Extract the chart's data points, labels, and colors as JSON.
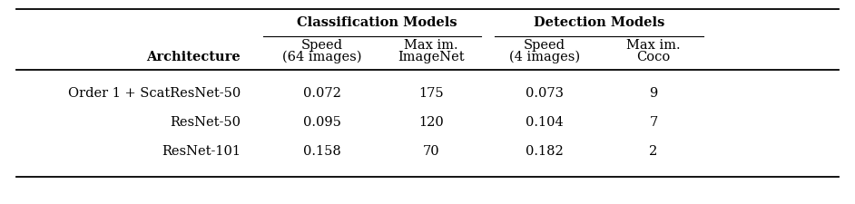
{
  "col_headers_top": [
    "Classification Models",
    "Detection Models"
  ],
  "col_headers_sub_line1": [
    "Speed",
    "Max im.",
    "Speed",
    "Max im."
  ],
  "col_headers_sub_line2": [
    "(64 images)",
    "ImageNet",
    "(4 images)",
    "Coco"
  ],
  "row_header": "Architecture",
  "rows": [
    [
      "Order 1 + ScatResNet-50",
      "0.072",
      "175",
      "0.073",
      "9"
    ],
    [
      "ResNet-50",
      "0.095",
      "120",
      "0.104",
      "7"
    ],
    [
      "ResNet-101",
      "0.158",
      "70",
      "0.182",
      "2"
    ]
  ],
  "bg_color": "#ffffff",
  "text_color": "#000000",
  "font_size": 10.5
}
